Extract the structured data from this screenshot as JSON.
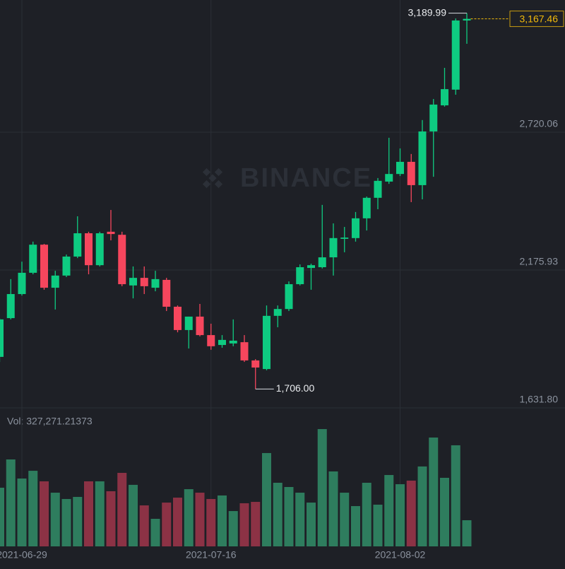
{
  "chart_data": {
    "type": "candlestick",
    "watermark": "BINANCE",
    "categories": [
      null,
      null,
      "2021-06-29",
      null,
      null,
      null,
      null,
      null,
      null,
      null,
      null,
      null,
      null,
      null,
      null,
      null,
      null,
      null,
      null,
      "2021-07-16",
      null,
      null,
      null,
      null,
      null,
      null,
      null,
      null,
      null,
      null,
      null,
      null,
      null,
      null,
      null,
      null,
      "2021-08-02",
      null,
      null,
      null,
      null,
      null,
      null
    ],
    "open": [
      1833,
      1986,
      2081,
      2165,
      2276,
      2106,
      2154,
      2229,
      2321,
      2195,
      2327,
      2315,
      2115,
      2145,
      2106,
      2137,
      2031,
      1939,
      1992,
      1919,
      1880,
      1886,
      1891,
      1819,
      1785,
      1995,
      2022,
      2120,
      2184,
      2187,
      2226,
      2299,
      2302,
      2380,
      2461,
      2525,
      2555,
      2603,
      2511,
      2723,
      2826,
      2888,
      3161
    ],
    "high": [
      1986,
      2140,
      2209,
      2288,
      2279,
      2173,
      2237,
      2388,
      2327,
      2327,
      2413,
      2327,
      2190,
      2190,
      2173,
      2145,
      2036,
      1992,
      2042,
      1964,
      1919,
      1981,
      1919,
      1824,
      2036,
      2036,
      2131,
      2198,
      2201,
      2433,
      2360,
      2346,
      2405,
      2466,
      2539,
      2698,
      2656,
      2634,
      2768,
      2851,
      2974,
      3169,
      3189.99
    ],
    "low": [
      1813,
      1981,
      2075,
      2159,
      2098,
      2020,
      2148,
      2223,
      2159,
      2190,
      2293,
      2112,
      2064,
      2081,
      2092,
      2014,
      1930,
      1866,
      1914,
      1861,
      1869,
      1875,
      1813,
      1706,
      1780,
      1950,
      2014,
      2115,
      2098,
      2182,
      2154,
      2246,
      2288,
      2332,
      2416,
      2516,
      2547,
      2444,
      2455,
      2544,
      2821,
      2868,
      3069
    ],
    "close": [
      1981,
      2081,
      2165,
      2276,
      2106,
      2154,
      2229,
      2321,
      2195,
      2321,
      2318,
      2120,
      2145,
      2112,
      2140,
      2031,
      1939,
      1992,
      1919,
      1875,
      1900,
      1897,
      1819,
      1791,
      1995,
      2022,
      2120,
      2187,
      2195,
      2226,
      2302,
      2304,
      2380,
      2461,
      2528,
      2555,
      2603,
      2511,
      2723,
      2829,
      2890,
      3161,
      3167.46
    ],
    "up_color": "#0ecb81",
    "down_color": "#f6465d",
    "ylim": [
      1631.8,
      3241.9
    ],
    "yticks": [
      {
        "value": 2720.06,
        "label": "2,720.06"
      },
      {
        "value": 2175.93,
        "label": "2,175.93"
      },
      {
        "value": 1631.8,
        "label": "1,631.80"
      }
    ],
    "high_label": "3,189.99",
    "low_label": "1,706.00",
    "last_price_label": "3,167.46",
    "last_price_color": "#f0b90b",
    "grid": true,
    "volume": {
      "label": "Vol: 327,271.21373",
      "values": [
        734000,
        1088000,
        849000,
        946000,
        814000,
        672000,
        593000,
        619000,
        814000,
        814000,
        690000,
        920000,
        770000,
        513000,
        345000,
        548000,
        610000,
        716000,
        672000,
        593000,
        637000,
        442000,
        540000,
        557000,
        1168000,
        796000,
        743000,
        672000,
        548000,
        1468000,
        938000,
        672000,
        504000,
        796000,
        522000,
        893000,
        778000,
        823000,
        1000000,
        1362000,
        858000,
        1265000,
        327271.21373
      ],
      "ylim": [
        0,
        1733600
      ],
      "up_color": "#2e7d5e",
      "down_color": "#8c3245"
    }
  }
}
